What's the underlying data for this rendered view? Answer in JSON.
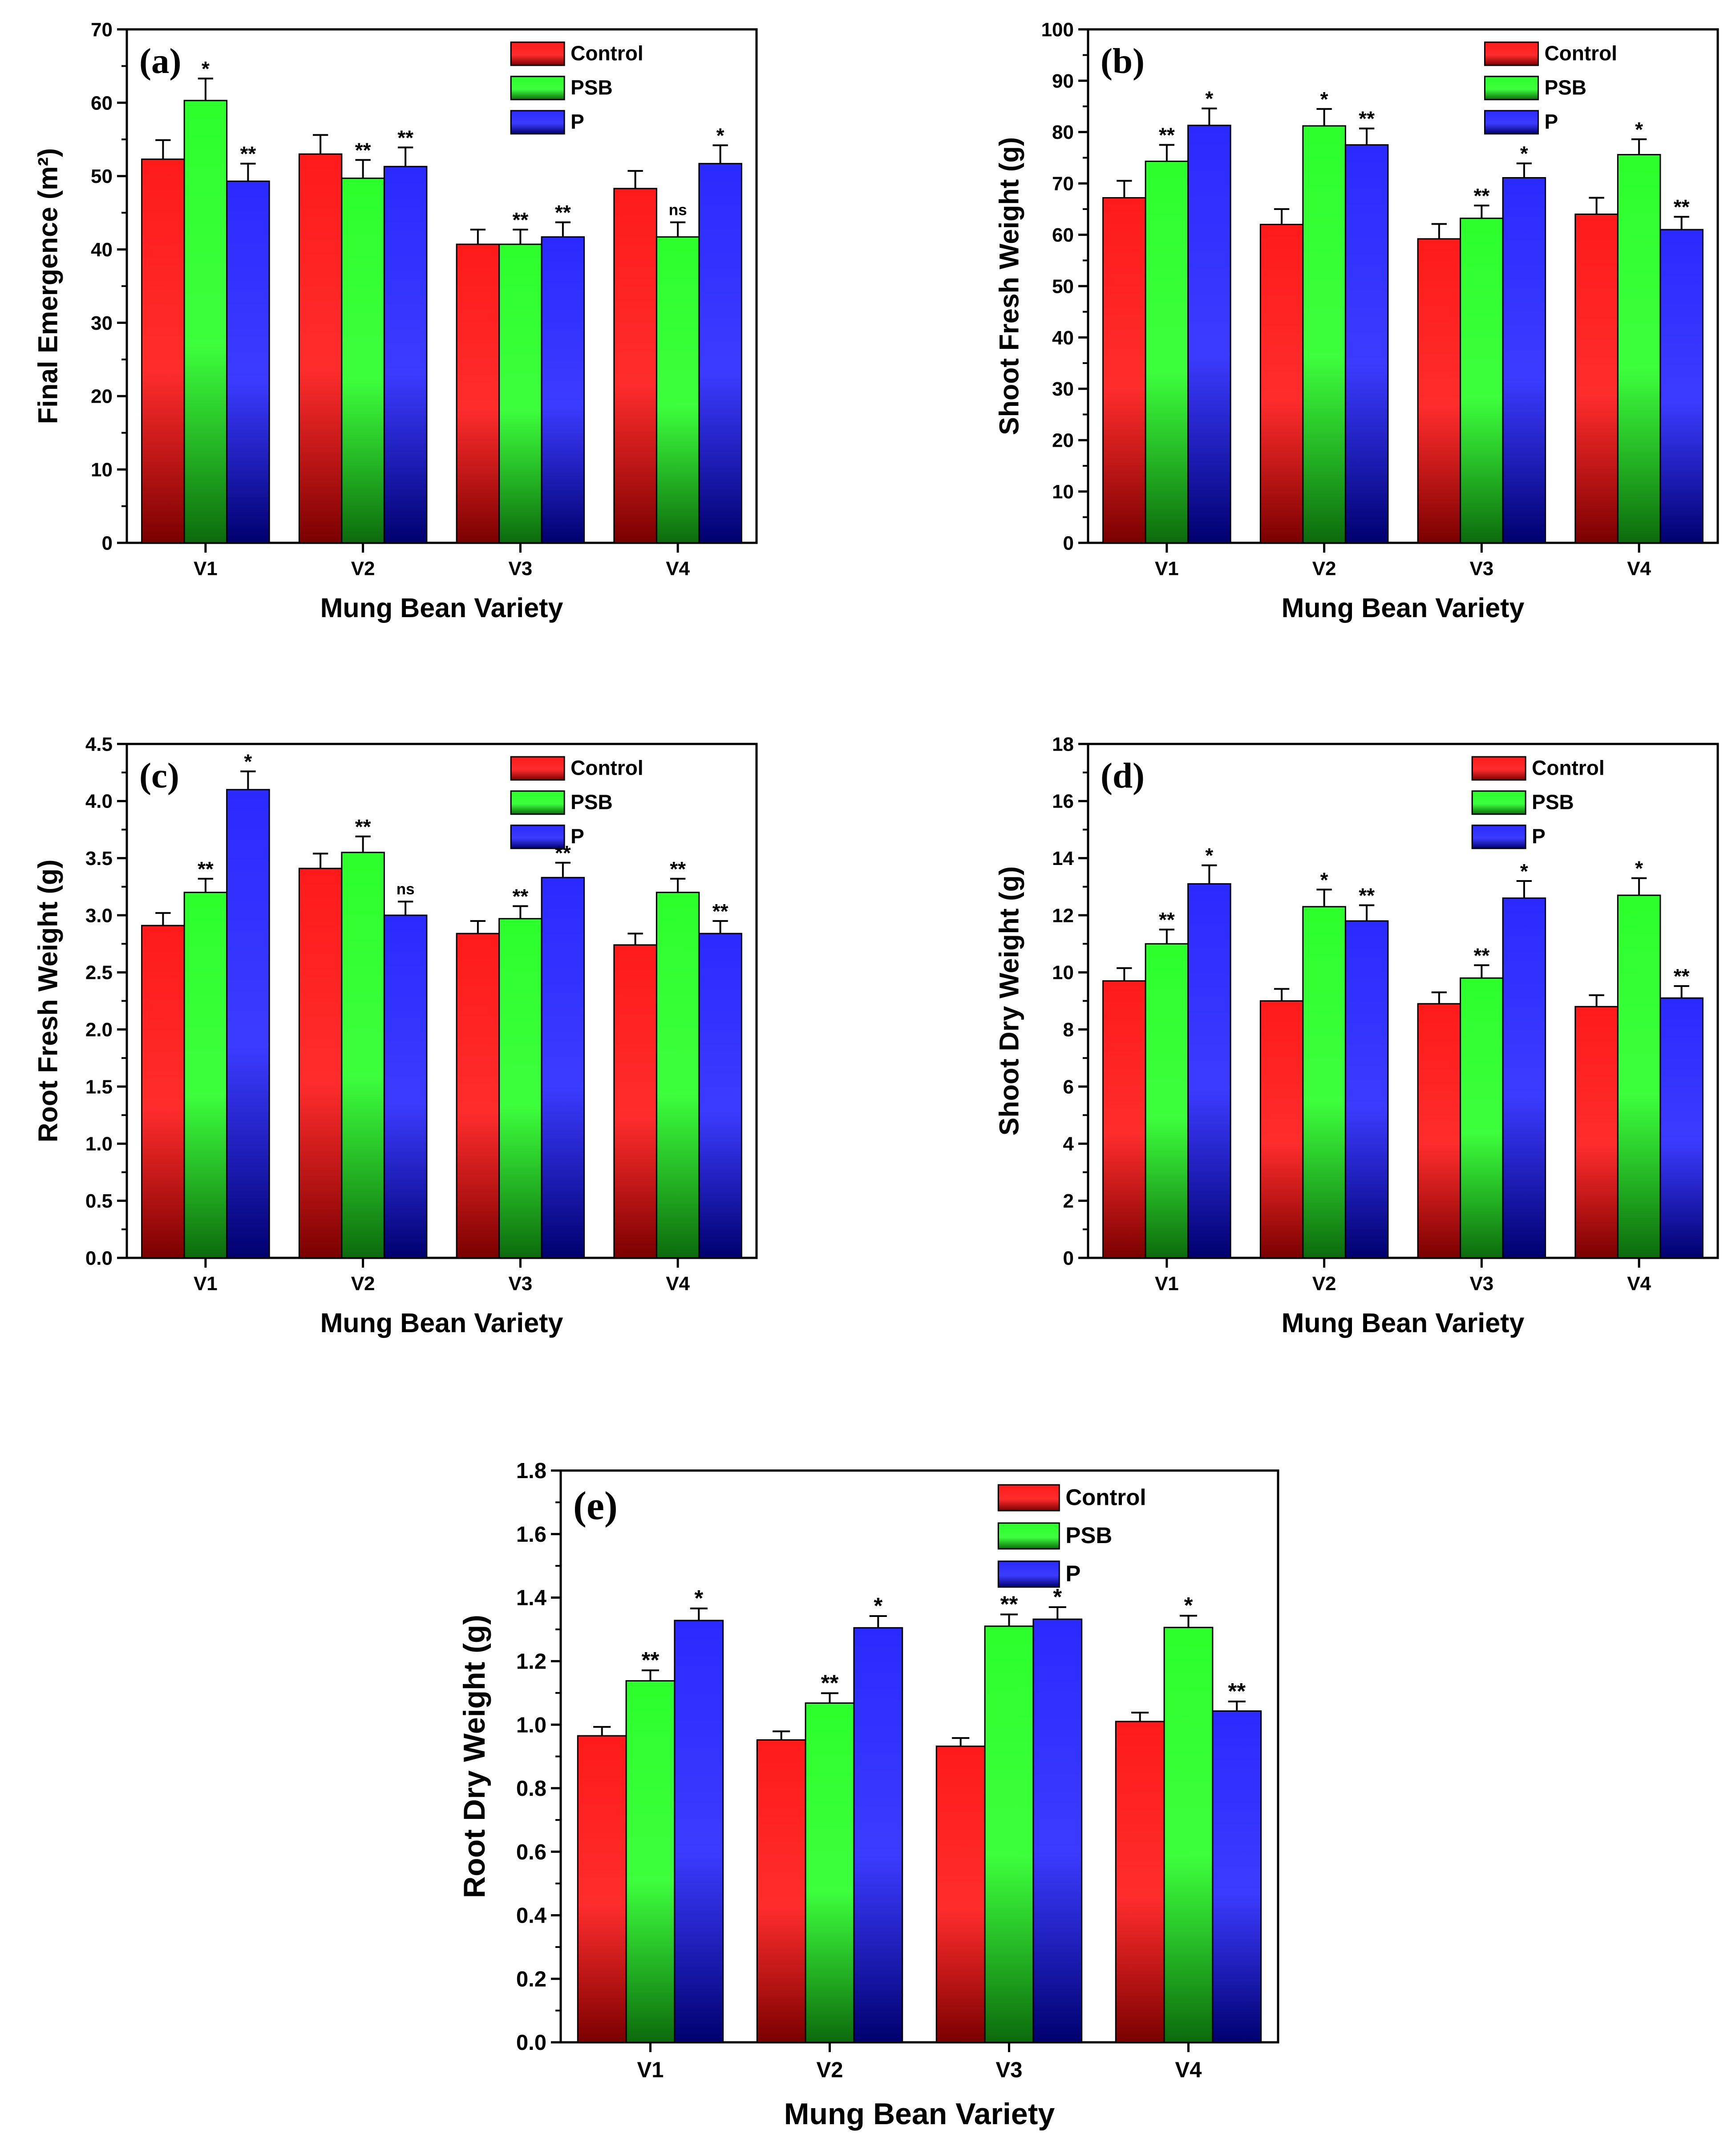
{
  "colors": {
    "Control": {
      "top": "#ff1a1a",
      "bottom": "#7a0000"
    },
    "PSB": {
      "top": "#2cff2c",
      "bottom": "#0c6a0c"
    },
    "P": {
      "top": "#2a2aff",
      "bottom": "#00006e"
    }
  },
  "chart_data": [
    {
      "type": "bar",
      "panel_label": "(a)",
      "xlabel": "Mung Bean Variety",
      "ylabel": "Final Emergence (m²)",
      "ylim": [
        0,
        70
      ],
      "yticks": [
        0,
        10,
        20,
        30,
        40,
        50,
        60,
        70
      ],
      "tick_decimals": 0,
      "legend_position": "top-right",
      "categories": [
        "V1",
        "V2",
        "V3",
        "V4"
      ],
      "series": [
        {
          "name": "Control",
          "values": [
            52.3,
            53.0,
            40.7,
            48.3
          ],
          "errors": [
            2.6,
            2.6,
            2.0,
            2.4
          ],
          "significance": [
            "",
            "",
            "",
            ""
          ]
        },
        {
          "name": "PSB",
          "values": [
            60.3,
            49.7,
            40.7,
            41.7
          ],
          "errors": [
            3.0,
            2.5,
            2.0,
            2.0
          ],
          "significance": [
            "*",
            "**",
            "**",
            "ns"
          ]
        },
        {
          "name": "P",
          "values": [
            49.3,
            51.3,
            41.7,
            51.7
          ],
          "errors": [
            2.4,
            2.6,
            2.0,
            2.5
          ],
          "significance": [
            "**",
            "**",
            "**",
            "*"
          ]
        }
      ]
    },
    {
      "type": "bar",
      "panel_label": "(b)",
      "xlabel": "Mung Bean Variety",
      "ylabel": "Shoot Fresh Weight (g)",
      "ylim": [
        0,
        100
      ],
      "yticks": [
        0,
        10,
        20,
        30,
        40,
        50,
        60,
        70,
        80,
        90,
        100
      ],
      "tick_decimals": 0,
      "legend_position": "top-left",
      "categories": [
        "V1",
        "V2",
        "V3",
        "V4"
      ],
      "series": [
        {
          "name": "Control",
          "values": [
            67.2,
            62.0,
            59.2,
            64.0
          ],
          "errors": [
            3.3,
            3.0,
            2.9,
            3.2
          ],
          "significance": [
            "",
            "",
            "",
            ""
          ]
        },
        {
          "name": "PSB",
          "values": [
            74.3,
            81.2,
            63.2,
            75.6
          ],
          "errors": [
            3.2,
            3.3,
            2.5,
            3.0
          ],
          "significance": [
            "**",
            "*",
            "**",
            "*"
          ]
        },
        {
          "name": "P",
          "values": [
            81.3,
            77.5,
            71.1,
            61.0
          ],
          "errors": [
            3.3,
            3.2,
            2.8,
            2.5
          ],
          "significance": [
            "*",
            "**",
            "*",
            "**"
          ]
        }
      ]
    },
    {
      "type": "bar",
      "panel_label": "(c)",
      "xlabel": "Mung Bean Variety",
      "ylabel": "Root Fresh Weight (g)",
      "ylim": [
        0,
        4.5
      ],
      "yticks": [
        0,
        0.5,
        1.0,
        1.5,
        2.0,
        2.5,
        3.0,
        3.5,
        4.0,
        4.5
      ],
      "tick_decimals": 1,
      "legend_position": "top-right",
      "categories": [
        "V1",
        "V2",
        "V3",
        "V4"
      ],
      "series": [
        {
          "name": "Control",
          "values": [
            2.91,
            3.41,
            2.84,
            2.74
          ],
          "errors": [
            0.11,
            0.13,
            0.11,
            0.1
          ],
          "significance": [
            "",
            "",
            "",
            ""
          ]
        },
        {
          "name": "PSB",
          "values": [
            3.2,
            3.55,
            2.97,
            3.2
          ],
          "errors": [
            0.12,
            0.14,
            0.11,
            0.12
          ],
          "significance": [
            "**",
            "**",
            "**",
            "**"
          ]
        },
        {
          "name": "P",
          "values": [
            4.1,
            3.0,
            3.33,
            2.84
          ],
          "errors": [
            0.16,
            0.12,
            0.13,
            0.11
          ],
          "significance": [
            "*",
            "ns",
            "**",
            "**"
          ]
        }
      ]
    },
    {
      "type": "bar",
      "panel_label": "(d)",
      "xlabel": "Mung Bean Variety",
      "ylabel": "Shoot Dry Weight (g)",
      "ylim": [
        0,
        18
      ],
      "yticks": [
        0,
        2,
        4,
        6,
        8,
        10,
        12,
        14,
        16,
        18
      ],
      "tick_decimals": 0,
      "legend_position": "top-right",
      "categories": [
        "V1",
        "V2",
        "V3",
        "V4"
      ],
      "series": [
        {
          "name": "Control",
          "values": [
            9.7,
            9.0,
            8.9,
            8.8
          ],
          "errors": [
            0.45,
            0.42,
            0.4,
            0.4
          ],
          "significance": [
            "",
            "",
            "",
            ""
          ]
        },
        {
          "name": "PSB",
          "values": [
            11.0,
            12.3,
            9.8,
            12.7
          ],
          "errors": [
            0.5,
            0.6,
            0.45,
            0.6
          ],
          "significance": [
            "**",
            "*",
            "**",
            "*"
          ]
        },
        {
          "name": "P",
          "values": [
            13.1,
            11.8,
            12.6,
            9.1
          ],
          "errors": [
            0.65,
            0.55,
            0.6,
            0.42
          ],
          "significance": [
            "*",
            "**",
            "*",
            "**"
          ]
        }
      ]
    },
    {
      "type": "bar",
      "panel_label": "(e)",
      "xlabel": "Mung Bean Variety",
      "ylabel": "Root Dry Weight (g)",
      "ylim": [
        0,
        1.8
      ],
      "yticks": [
        0,
        0.2,
        0.4,
        0.6,
        0.8,
        1.0,
        1.2,
        1.4,
        1.6,
        1.8
      ],
      "tick_decimals": 1,
      "legend_position": "top-right",
      "categories": [
        "V1",
        "V2",
        "V3",
        "V4"
      ],
      "series": [
        {
          "name": "Control",
          "values": [
            0.965,
            0.952,
            0.932,
            1.01
          ],
          "errors": [
            0.028,
            0.027,
            0.026,
            0.028
          ],
          "significance": [
            "",
            "",
            "",
            ""
          ]
        },
        {
          "name": "PSB",
          "values": [
            1.138,
            1.068,
            1.31,
            1.306
          ],
          "errors": [
            0.033,
            0.031,
            0.037,
            0.037
          ],
          "significance": [
            "**",
            "**",
            "**",
            "*"
          ]
        },
        {
          "name": "P",
          "values": [
            1.328,
            1.305,
            1.332,
            1.043
          ],
          "errors": [
            0.038,
            0.037,
            0.038,
            0.03
          ],
          "significance": [
            "*",
            "*",
            "*",
            "**"
          ]
        }
      ]
    }
  ]
}
